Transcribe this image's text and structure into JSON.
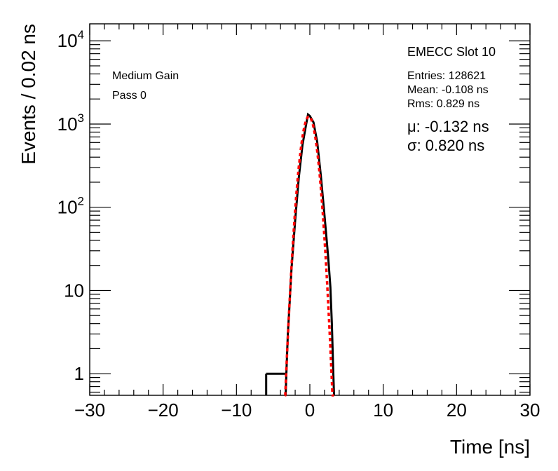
{
  "chart_data": {
    "type": "histogram",
    "xlabel": "Time [ns]",
    "ylabel": "Events / 0.02 ns",
    "xlim": [
      -30,
      30
    ],
    "ylim": [
      0.55,
      16000
    ],
    "yscale": "log",
    "x_ticks": [
      -30,
      -20,
      -10,
      0,
      10,
      20,
      30
    ],
    "x_tick_labels": [
      "−30",
      "−20",
      "−10",
      "0",
      "10",
      "20",
      "30"
    ],
    "y_ticks": [
      {
        "value": 1,
        "base": "1",
        "exp": ""
      },
      {
        "value": 10,
        "base": "10",
        "exp": ""
      },
      {
        "value": 100,
        "base": "10",
        "exp": "2"
      },
      {
        "value": 1000,
        "base": "10",
        "exp": "3"
      },
      {
        "value": 10000,
        "base": "10",
        "exp": "4"
      }
    ],
    "labels": {
      "gain": "Medium Gain",
      "pass": "Pass 0"
    },
    "stats": {
      "title": "EMECC Slot 10",
      "entries": "Entries: 128621",
      "mean": "Mean: -0.108 ns",
      "rms": "Rms: 0.829 ns",
      "fit_mu": "μ: -0.132 ns",
      "fit_sigma": "σ: 0.820 ns"
    },
    "series": [
      {
        "kind": "histogram",
        "color": "#000000",
        "x": [
          -5.95,
          -3.2,
          -3.0,
          -2.8,
          -2.5,
          -2.0,
          -1.5,
          -1.0,
          -0.5,
          -0.25,
          0.0,
          0.5,
          1.0,
          1.5,
          2.0,
          2.5,
          2.8,
          3.0,
          3.2
        ],
        "y": [
          1.0,
          1.0,
          3.0,
          6.0,
          18.0,
          70.0,
          230.0,
          560.0,
          1000.0,
          1300.0,
          1250.0,
          1050.0,
          610.0,
          240.0,
          80.0,
          25.0,
          11.0,
          4.0,
          1.0
        ]
      },
      {
        "kind": "gaussian_fit",
        "color": "#ff0000",
        "amplitude": 1230,
        "mean": -0.132,
        "sigma": 0.82,
        "range": [
          -3.4,
          3.3
        ]
      }
    ]
  }
}
